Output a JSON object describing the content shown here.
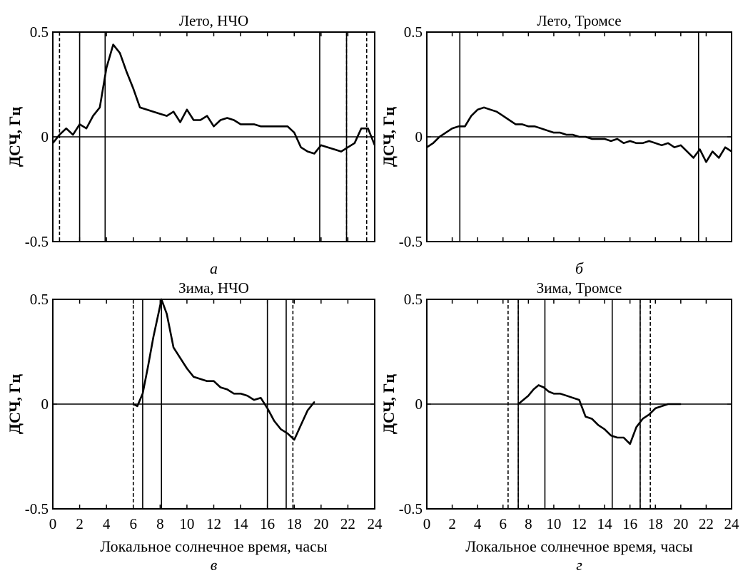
{
  "chart_data": [
    {
      "id": "a",
      "type": "line",
      "title": "Лето, НЧО",
      "panel_label": "а",
      "ylabel": "ДСЧ, Гц",
      "xlabel": "",
      "xlim": [
        0,
        24
      ],
      "ylim": [
        -0.5,
        0.5
      ],
      "yticks": [
        "0.5",
        "0",
        "-0.5"
      ],
      "xticks": [],
      "solid_vlines": [
        2.0,
        3.9,
        19.9,
        21.9
      ],
      "dashed_vlines": [
        0.5,
        21.9,
        23.4
      ],
      "series": [
        {
          "x": [
            0,
            0.5,
            1,
            1.5,
            2,
            2.5,
            3,
            3.5,
            4,
            4.5,
            5,
            5.5,
            6,
            6.5,
            7,
            7.5,
            8,
            8.5,
            9,
            9.5,
            10,
            10.5,
            11,
            11.5,
            12,
            12.5,
            13,
            13.5,
            14,
            14.5,
            15,
            15.5,
            16,
            16.5,
            17,
            17.5,
            18,
            18.5,
            19,
            19.5,
            20,
            20.5,
            21,
            21.5,
            22,
            22.5,
            23,
            23.5,
            24
          ],
          "y": [
            -0.03,
            0.01,
            0.04,
            0.01,
            0.06,
            0.04,
            0.1,
            0.14,
            0.33,
            0.44,
            0.4,
            0.31,
            0.23,
            0.14,
            0.13,
            0.12,
            0.11,
            0.1,
            0.12,
            0.07,
            0.13,
            0.08,
            0.08,
            0.1,
            0.05,
            0.08,
            0.09,
            0.08,
            0.06,
            0.06,
            0.06,
            0.05,
            0.05,
            0.05,
            0.05,
            0.05,
            0.02,
            -0.05,
            -0.07,
            -0.08,
            -0.04,
            -0.05,
            -0.06,
            -0.07,
            -0.05,
            -0.03,
            0.04,
            0.04,
            -0.04
          ]
        }
      ]
    },
    {
      "id": "b",
      "type": "line",
      "title": "Лето, Тромсе",
      "panel_label": "б",
      "ylabel": "ДСЧ, Гц",
      "xlabel": "",
      "xlim": [
        0,
        24
      ],
      "ylim": [
        -0.5,
        0.5
      ],
      "yticks": [
        "0.5",
        "0",
        "-0.5"
      ],
      "xticks": [],
      "solid_vlines": [
        2.6,
        21.4
      ],
      "dashed_vlines": [],
      "series": [
        {
          "x": [
            0,
            0.5,
            1,
            1.5,
            2,
            2.5,
            3,
            3.5,
            4,
            4.5,
            5,
            5.5,
            6,
            6.5,
            7,
            7.5,
            8,
            8.5,
            9,
            9.5,
            10,
            10.5,
            11,
            11.5,
            12,
            12.5,
            13,
            13.5,
            14,
            14.5,
            15,
            15.5,
            16,
            16.5,
            17,
            17.5,
            18,
            18.5,
            19,
            19.5,
            20,
            20.5,
            21,
            21.5,
            22,
            22.5,
            23,
            23.5,
            24
          ],
          "y": [
            -0.05,
            -0.03,
            0.0,
            0.02,
            0.04,
            0.05,
            0.05,
            0.1,
            0.13,
            0.14,
            0.13,
            0.12,
            0.1,
            0.08,
            0.06,
            0.06,
            0.05,
            0.05,
            0.04,
            0.03,
            0.02,
            0.02,
            0.01,
            0.01,
            0.0,
            0.0,
            -0.01,
            -0.01,
            -0.01,
            -0.02,
            -0.01,
            -0.03,
            -0.02,
            -0.03,
            -0.03,
            -0.02,
            -0.03,
            -0.04,
            -0.03,
            -0.05,
            -0.04,
            -0.07,
            -0.1,
            -0.06,
            -0.12,
            -0.07,
            -0.1,
            -0.05,
            -0.07
          ]
        }
      ]
    },
    {
      "id": "v",
      "type": "line",
      "title": "Зима, НЧО",
      "panel_label": "в",
      "ylabel": "ДСЧ, Гц",
      "xlabel": "Локальное солнечное время, часы",
      "xlim": [
        0,
        24
      ],
      "ylim": [
        -0.5,
        0.5
      ],
      "yticks": [
        "0.5",
        "0",
        "-0.5"
      ],
      "xticks": [
        "0",
        "2",
        "4",
        "6",
        "8",
        "10",
        "12",
        "14",
        "16",
        "18",
        "20",
        "22",
        "24"
      ],
      "solid_vlines": [
        6.7,
        8.1,
        16.0,
        17.4
      ],
      "dashed_vlines": [
        6.0,
        17.9
      ],
      "series": [
        {
          "x": [
            6.0,
            6.3,
            6.7,
            7.1,
            7.5,
            7.9,
            8.1,
            8.5,
            9.0,
            9.5,
            10.0,
            10.5,
            11.0,
            11.5,
            12.0,
            12.5,
            13.0,
            13.5,
            14.0,
            14.5,
            15.0,
            15.5,
            16.0,
            16.5,
            17.0,
            17.5,
            18.0,
            18.5,
            19.0,
            19.5
          ],
          "y": [
            0.0,
            -0.01,
            0.05,
            0.18,
            0.32,
            0.44,
            0.5,
            0.43,
            0.27,
            0.22,
            0.17,
            0.13,
            0.12,
            0.11,
            0.11,
            0.08,
            0.07,
            0.05,
            0.05,
            0.04,
            0.02,
            0.03,
            -0.02,
            -0.08,
            -0.12,
            -0.14,
            -0.17,
            -0.1,
            -0.03,
            0.01
          ]
        }
      ]
    },
    {
      "id": "g",
      "type": "line",
      "title": "Зима, Тромсе",
      "panel_label": "г",
      "ylabel": "ДСЧ, Гц",
      "xlabel": "Локальное солнечное время, часы",
      "xlim": [
        0,
        24
      ],
      "ylim": [
        -0.5,
        0.5
      ],
      "yticks": [
        "0.5",
        "0",
        "-0.5"
      ],
      "xticks": [
        "0",
        "2",
        "4",
        "6",
        "8",
        "10",
        "12",
        "14",
        "16",
        "18",
        "20",
        "22",
        "24"
      ],
      "solid_vlines": [
        7.2,
        9.3,
        14.6,
        16.8
      ],
      "dashed_vlines": [
        6.4,
        7.2,
        16.8,
        17.6
      ],
      "series": [
        {
          "x": [
            7.2,
            7.6,
            8.0,
            8.4,
            8.8,
            9.2,
            9.6,
            10.0,
            10.5,
            11.0,
            11.5,
            12.0,
            12.5,
            13.0,
            13.5,
            14.0,
            14.5,
            15.0,
            15.5,
            16.0,
            16.5,
            17.0,
            17.5,
            18.0,
            18.5,
            19.0,
            19.5,
            20.0
          ],
          "y": [
            0.0,
            0.02,
            0.04,
            0.07,
            0.09,
            0.08,
            0.06,
            0.05,
            0.05,
            0.04,
            0.03,
            0.02,
            -0.06,
            -0.07,
            -0.1,
            -0.12,
            -0.15,
            -0.16,
            -0.16,
            -0.19,
            -0.11,
            -0.07,
            -0.05,
            -0.02,
            -0.01,
            0.0,
            0.0,
            0.0
          ]
        }
      ]
    }
  ]
}
